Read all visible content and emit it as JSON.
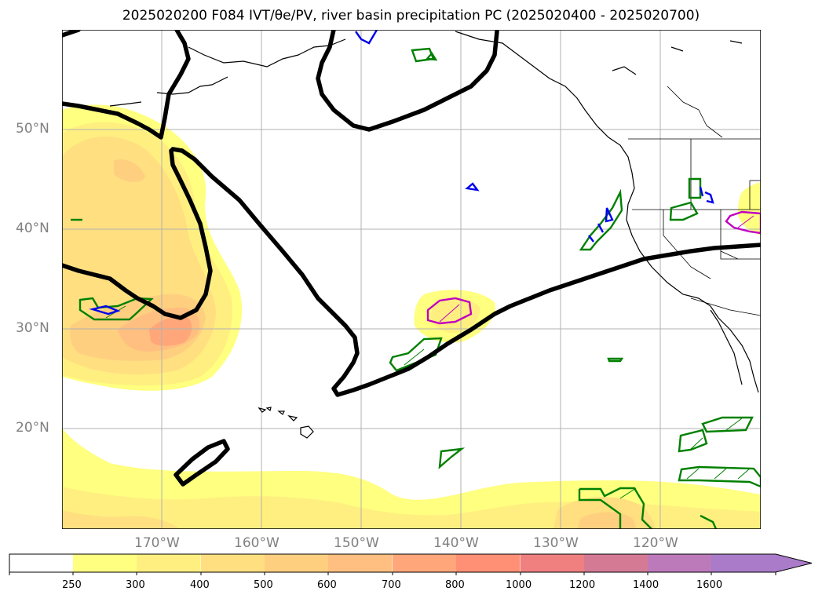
{
  "title": "2025020200 F084 IVT/θe/PV, river basin precipitation PC (2025020400 - 2025020700)",
  "lat_labels": [
    "50°N",
    "40°N",
    "30°N",
    "20°N"
  ],
  "lon_labels": [
    "170°W",
    "160°W",
    "150°W",
    "140°W",
    "130°W",
    "120°W"
  ],
  "colorbar": {
    "levels": [
      "250",
      "300",
      "400",
      "500",
      "600",
      "700",
      "800",
      "1000",
      "1200",
      "1400",
      "1600"
    ],
    "colors": [
      "#ffff80",
      "#ffef80",
      "#ffdf80",
      "#ffcf80",
      "#ffbf80",
      "#ffa77a",
      "#ff8f75",
      "#f07f80",
      "#d57a95",
      "#bd7abb",
      "#a97bc9"
    ],
    "extend": "max"
  },
  "colors": {
    "contour_black": "#000000",
    "precip_green": "#008000",
    "precip_blue": "#0000ee",
    "precip_magenta": "#c000c0",
    "grid": "#b0b0b0",
    "coast": "#000000"
  }
}
